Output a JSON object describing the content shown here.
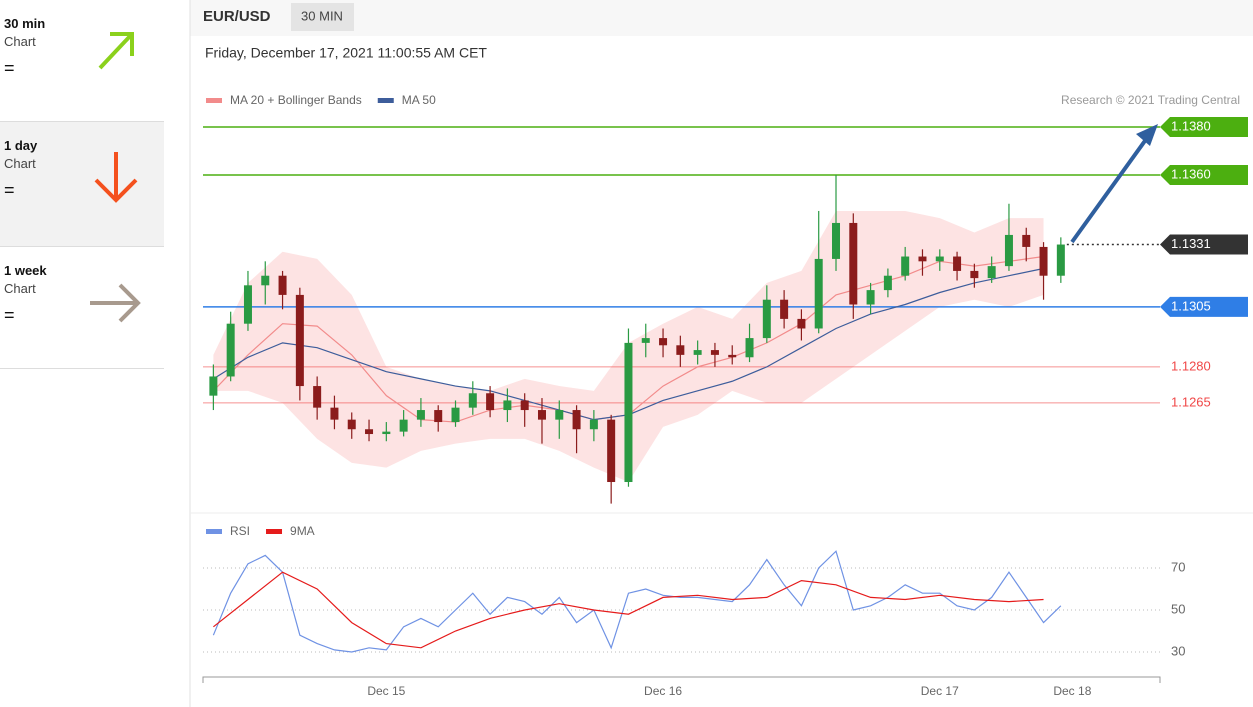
{
  "sidebar": [
    {
      "period": "30 min",
      "label": "Chart",
      "signal": "="
    },
    {
      "period": "1 day",
      "label": "Chart",
      "signal": "="
    },
    {
      "period": "1 week",
      "label": "Chart",
      "signal": "="
    }
  ],
  "chart_data": [
    {
      "type": "candlestick",
      "title": "EUR/USD",
      "timeframe": "30 MIN",
      "subtitle": "Friday, December 17, 2021 11:00:55 AM CET",
      "source": "Research © 2021 Trading Central",
      "up_color": "#2a9a43",
      "down_color": "#8b1c1c",
      "x": [
        -15,
        -13.5,
        -12,
        -10.5,
        -9,
        -7.5,
        -6,
        -4.5,
        -3,
        -1.5,
        0,
        1.5,
        3,
        4.5,
        6,
        7.5,
        9,
        10.5,
        12,
        13.5,
        15,
        16.5,
        18,
        19.5,
        21,
        22.5,
        24,
        25.5,
        27,
        28.5,
        30,
        31.5,
        33,
        34.5,
        36,
        37.5,
        39,
        40.5,
        42,
        43.5,
        45,
        46.5,
        48,
        49.5,
        51,
        52.5,
        54,
        55.5,
        57,
        58.5
      ],
      "open": [
        1.1268,
        1.1276,
        1.1298,
        1.1314,
        1.1318,
        1.131,
        1.1272,
        1.1263,
        1.1258,
        1.1254,
        1.1252,
        1.1253,
        1.1258,
        1.1262,
        1.1257,
        1.1263,
        1.1269,
        1.1262,
        1.1266,
        1.1262,
        1.1258,
        1.1262,
        1.1254,
        1.1258,
        1.1232,
        1.129,
        1.1292,
        1.1289,
        1.1285,
        1.1287,
        1.1285,
        1.1284,
        1.1292,
        1.1308,
        1.13,
        1.1296,
        1.1325,
        1.134,
        1.1306,
        1.1312,
        1.1318,
        1.1326,
        1.1324,
        1.1326,
        1.132,
        1.1317,
        1.1322,
        1.1335,
        1.133,
        1.1318
      ],
      "high": [
        1.1281,
        1.1303,
        1.132,
        1.1324,
        1.132,
        1.1313,
        1.1276,
        1.1268,
        1.1261,
        1.1258,
        1.1257,
        1.1262,
        1.1267,
        1.1264,
        1.1266,
        1.1274,
        1.1272,
        1.1271,
        1.1269,
        1.1267,
        1.1266,
        1.1264,
        1.1262,
        1.126,
        1.1296,
        1.1298,
        1.1296,
        1.1293,
        1.1291,
        1.129,
        1.1289,
        1.1298,
        1.1314,
        1.1312,
        1.1304,
        1.1345,
        1.136,
        1.1344,
        1.1315,
        1.1321,
        1.133,
        1.1329,
        1.1329,
        1.1328,
        1.1323,
        1.1326,
        1.1348,
        1.1338,
        1.1332,
        1.1334
      ],
      "low": [
        1.1262,
        1.1274,
        1.1295,
        1.1306,
        1.1304,
        1.1266,
        1.1258,
        1.1254,
        1.125,
        1.1249,
        1.1249,
        1.1251,
        1.1255,
        1.1253,
        1.1255,
        1.126,
        1.1259,
        1.1257,
        1.1255,
        1.1248,
        1.125,
        1.1244,
        1.1249,
        1.1223,
        1.123,
        1.1284,
        1.1284,
        1.128,
        1.1281,
        1.128,
        1.1281,
        1.1282,
        1.129,
        1.1296,
        1.1291,
        1.1294,
        1.132,
        1.13,
        1.1302,
        1.1309,
        1.1316,
        1.1318,
        1.132,
        1.1316,
        1.1313,
        1.1315,
        1.132,
        1.1324,
        1.1308,
        1.1315
      ],
      "close": [
        1.1276,
        1.1298,
        1.1314,
        1.1318,
        1.131,
        1.1272,
        1.1263,
        1.1258,
        1.1254,
        1.1252,
        1.1253,
        1.1258,
        1.1262,
        1.1257,
        1.1263,
        1.1269,
        1.1262,
        1.1266,
        1.1262,
        1.1258,
        1.1262,
        1.1254,
        1.1258,
        1.1232,
        1.129,
        1.1292,
        1.1289,
        1.1285,
        1.1287,
        1.1285,
        1.1284,
        1.1292,
        1.1308,
        1.13,
        1.1296,
        1.1325,
        1.134,
        1.1306,
        1.1312,
        1.1318,
        1.1326,
        1.1324,
        1.1326,
        1.132,
        1.1317,
        1.1322,
        1.1335,
        1.133,
        1.1318,
        1.1331
      ],
      "series": [
        {
          "name": "MA 20 + Bollinger Bands",
          "color": "#f28b8b",
          "band_color": "#fde3e3",
          "x": [
            -15,
            -12,
            -9,
            -6,
            -3,
            0,
            3,
            6,
            9,
            12,
            15,
            18,
            21,
            24,
            27,
            30,
            33,
            36,
            39,
            42,
            45,
            48,
            51,
            54,
            57
          ],
          "values": [
            1.127,
            1.1285,
            1.1298,
            1.1297,
            1.1285,
            1.1268,
            1.1258,
            1.1257,
            1.1262,
            1.1264,
            1.1262,
            1.1258,
            1.126,
            1.1272,
            1.128,
            1.1284,
            1.129,
            1.1298,
            1.131,
            1.1314,
            1.1318,
            1.1324,
            1.1322,
            1.1324,
            1.1326
          ],
          "upper": [
            1.1285,
            1.1315,
            1.1328,
            1.1325,
            1.131,
            1.128,
            1.1275,
            1.1272,
            1.127,
            1.1275,
            1.1272,
            1.127,
            1.129,
            1.1298,
            1.1305,
            1.13,
            1.1315,
            1.132,
            1.1345,
            1.1345,
            1.1345,
            1.1342,
            1.1336,
            1.1342,
            1.1342
          ],
          "lower": [
            1.127,
            1.127,
            1.1265,
            1.125,
            1.124,
            1.1238,
            1.1245,
            1.1248,
            1.125,
            1.125,
            1.1245,
            1.1238,
            1.1232,
            1.1255,
            1.126,
            1.127,
            1.1265,
            1.1265,
            1.1275,
            1.1285,
            1.1295,
            1.1305,
            1.1308,
            1.1305,
            1.131
          ]
        },
        {
          "name": "MA 50",
          "color": "#3d5d9b",
          "x": [
            -15,
            -12,
            -9,
            -6,
            -3,
            0,
            3,
            6,
            9,
            12,
            15,
            18,
            21,
            24,
            27,
            30,
            33,
            36,
            39,
            42,
            45,
            48,
            51,
            54,
            57
          ],
          "values": [
            1.1275,
            1.1284,
            1.129,
            1.1288,
            1.1283,
            1.1278,
            1.1275,
            1.1272,
            1.127,
            1.1266,
            1.1262,
            1.1258,
            1.126,
            1.1266,
            1.127,
            1.1274,
            1.128,
            1.1288,
            1.1296,
            1.1302,
            1.1306,
            1.1311,
            1.1315,
            1.1318,
            1.1321
          ]
        }
      ],
      "levels": [
        {
          "value": 1.138,
          "label": "1.1380",
          "color": "#4caf10",
          "box": true,
          "line": "solid"
        },
        {
          "value": 1.136,
          "label": "1.1360",
          "color": "#4caf10",
          "box": true,
          "line": "solid"
        },
        {
          "value": 1.1331,
          "label": "1.1331",
          "color": "#333333",
          "box": true,
          "line": "dotted"
        },
        {
          "value": 1.1305,
          "label": "1.1305",
          "color": "#2f7ee6",
          "box": true,
          "line": "solid"
        },
        {
          "value": 1.128,
          "label": "1.1280",
          "color": "#f04848",
          "box": false,
          "line": "solid"
        },
        {
          "value": 1.1265,
          "label": "1.1265",
          "color": "#f04848",
          "box": false,
          "line": "solid"
        }
      ],
      "ylim": [
        1.1222,
        1.1385
      ],
      "xlim": [
        -15.9,
        67.1
      ]
    },
    {
      "type": "line",
      "series": [
        {
          "name": "RSI",
          "color": "#6f92e4",
          "x": [
            -15,
            -13.5,
            -12,
            -10.5,
            -9,
            -7.5,
            -6,
            -4.5,
            -3,
            -1.5,
            0,
            1.5,
            3,
            4.5,
            6,
            7.5,
            9,
            10.5,
            12,
            13.5,
            15,
            16.5,
            18,
            19.5,
            21,
            22.5,
            24,
            25.5,
            27,
            28.5,
            30,
            31.5,
            33,
            34.5,
            36,
            37.5,
            39,
            40.5,
            42,
            43.5,
            45,
            46.5,
            48,
            49.5,
            51,
            52.5,
            54,
            55.5,
            57,
            58.5
          ],
          "values": [
            38,
            58,
            72,
            76,
            68,
            38,
            34,
            31,
            30,
            32,
            31,
            42,
            46,
            42,
            50,
            58,
            48,
            56,
            54,
            48,
            56,
            44,
            50,
            32,
            58,
            60,
            57,
            56,
            56,
            55,
            54,
            62,
            74,
            62,
            52,
            70,
            78,
            50,
            52,
            56,
            62,
            58,
            58,
            52,
            50,
            56,
            68,
            56,
            44,
            52
          ]
        },
        {
          "name": "9MA",
          "color": "#e51b1b",
          "x": [
            -15,
            -12,
            -9,
            -6,
            -3,
            0,
            3,
            6,
            9,
            12,
            15,
            18,
            21,
            24,
            27,
            30,
            33,
            36,
            39,
            42,
            45,
            48,
            51,
            54,
            57
          ],
          "values": [
            42,
            55,
            68,
            60,
            44,
            34,
            32,
            40,
            46,
            50,
            53,
            50,
            48,
            56,
            57,
            55,
            56,
            64,
            62,
            56,
            55,
            57,
            55,
            54,
            55
          ]
        }
      ],
      "ylim": [
        20,
        90
      ],
      "yticks": [
        70,
        50,
        30
      ],
      "xlim": [
        -15.9,
        67.1
      ],
      "xticks": [
        {
          "value": 0,
          "label": "Dec 15"
        },
        {
          "value": 24,
          "label": "Dec 16"
        },
        {
          "value": 48,
          "label": "Dec 17"
        },
        {
          "value": 59.5,
          "label": "Dec 18"
        }
      ]
    }
  ]
}
